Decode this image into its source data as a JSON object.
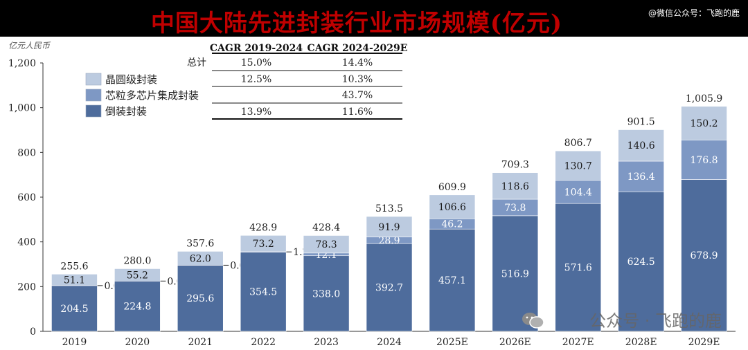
{
  "header": {
    "title": "中国大陆先进封装行业市场规模(亿元)",
    "credit": "@微信公众号：飞跑的鹿"
  },
  "watermark": {
    "text": "公众号 · 飞跑的鹿",
    "icon": "wechat-icon"
  },
  "colors": {
    "flip_chip": "#4e6c9c",
    "chiplet": "#7e98c4",
    "wafer_level": "#bccbe0",
    "title_red": "#c00000"
  },
  "chart_data": {
    "type": "bar",
    "stacked": true,
    "unit_label": "亿元人民币",
    "categories": [
      "2019",
      "2020",
      "2021",
      "2022",
      "2023",
      "2024",
      "2025E",
      "2026E",
      "2027E",
      "2028E",
      "2029E"
    ],
    "series": [
      {
        "name": "倒装封装",
        "values": [
          204.5,
          224.8,
          295.6,
          354.5,
          338.0,
          392.7,
          457.1,
          516.9,
          571.6,
          624.5,
          678.9
        ]
      },
      {
        "name": "芯粒多芯片集成封装",
        "values": [
          0.0,
          0.0,
          0.0,
          1.2,
          12.1,
          28.9,
          46.2,
          73.8,
          104.4,
          136.4,
          176.8
        ]
      },
      {
        "name": "晶圆级封装",
        "values": [
          51.1,
          55.2,
          62.0,
          73.2,
          78.3,
          91.9,
          106.6,
          118.6,
          130.7,
          140.6,
          150.2
        ]
      }
    ],
    "totals": [
      "255.6",
      "280.0",
      "357.6",
      "428.9",
      "428.4",
      "513.5",
      "609.9",
      "709.3",
      "806.7",
      "901.5",
      "1,005.9"
    ],
    "yticks": [
      "0",
      "200",
      "400",
      "600",
      "800",
      "1,000",
      "1,200"
    ],
    "ylim": [
      0,
      1200
    ],
    "legend": [
      "晶圆级封装",
      "芯粒多芯片集成封装",
      "倒装封装"
    ],
    "cagr_table": {
      "headers": [
        "CAGR 2019-2024",
        "CAGR 2024-2029E"
      ],
      "rows": [
        {
          "label": "总计",
          "a": "15.0%",
          "b": "14.4%"
        },
        {
          "label": "晶圆级封装",
          "a": "12.5%",
          "b": "10.3%"
        },
        {
          "label": "芯粒多芯片集成封装",
          "a": "",
          "b": "43.7%"
        },
        {
          "label": "倒装封装",
          "a": "13.9%",
          "b": "11.6%"
        }
      ]
    }
  }
}
